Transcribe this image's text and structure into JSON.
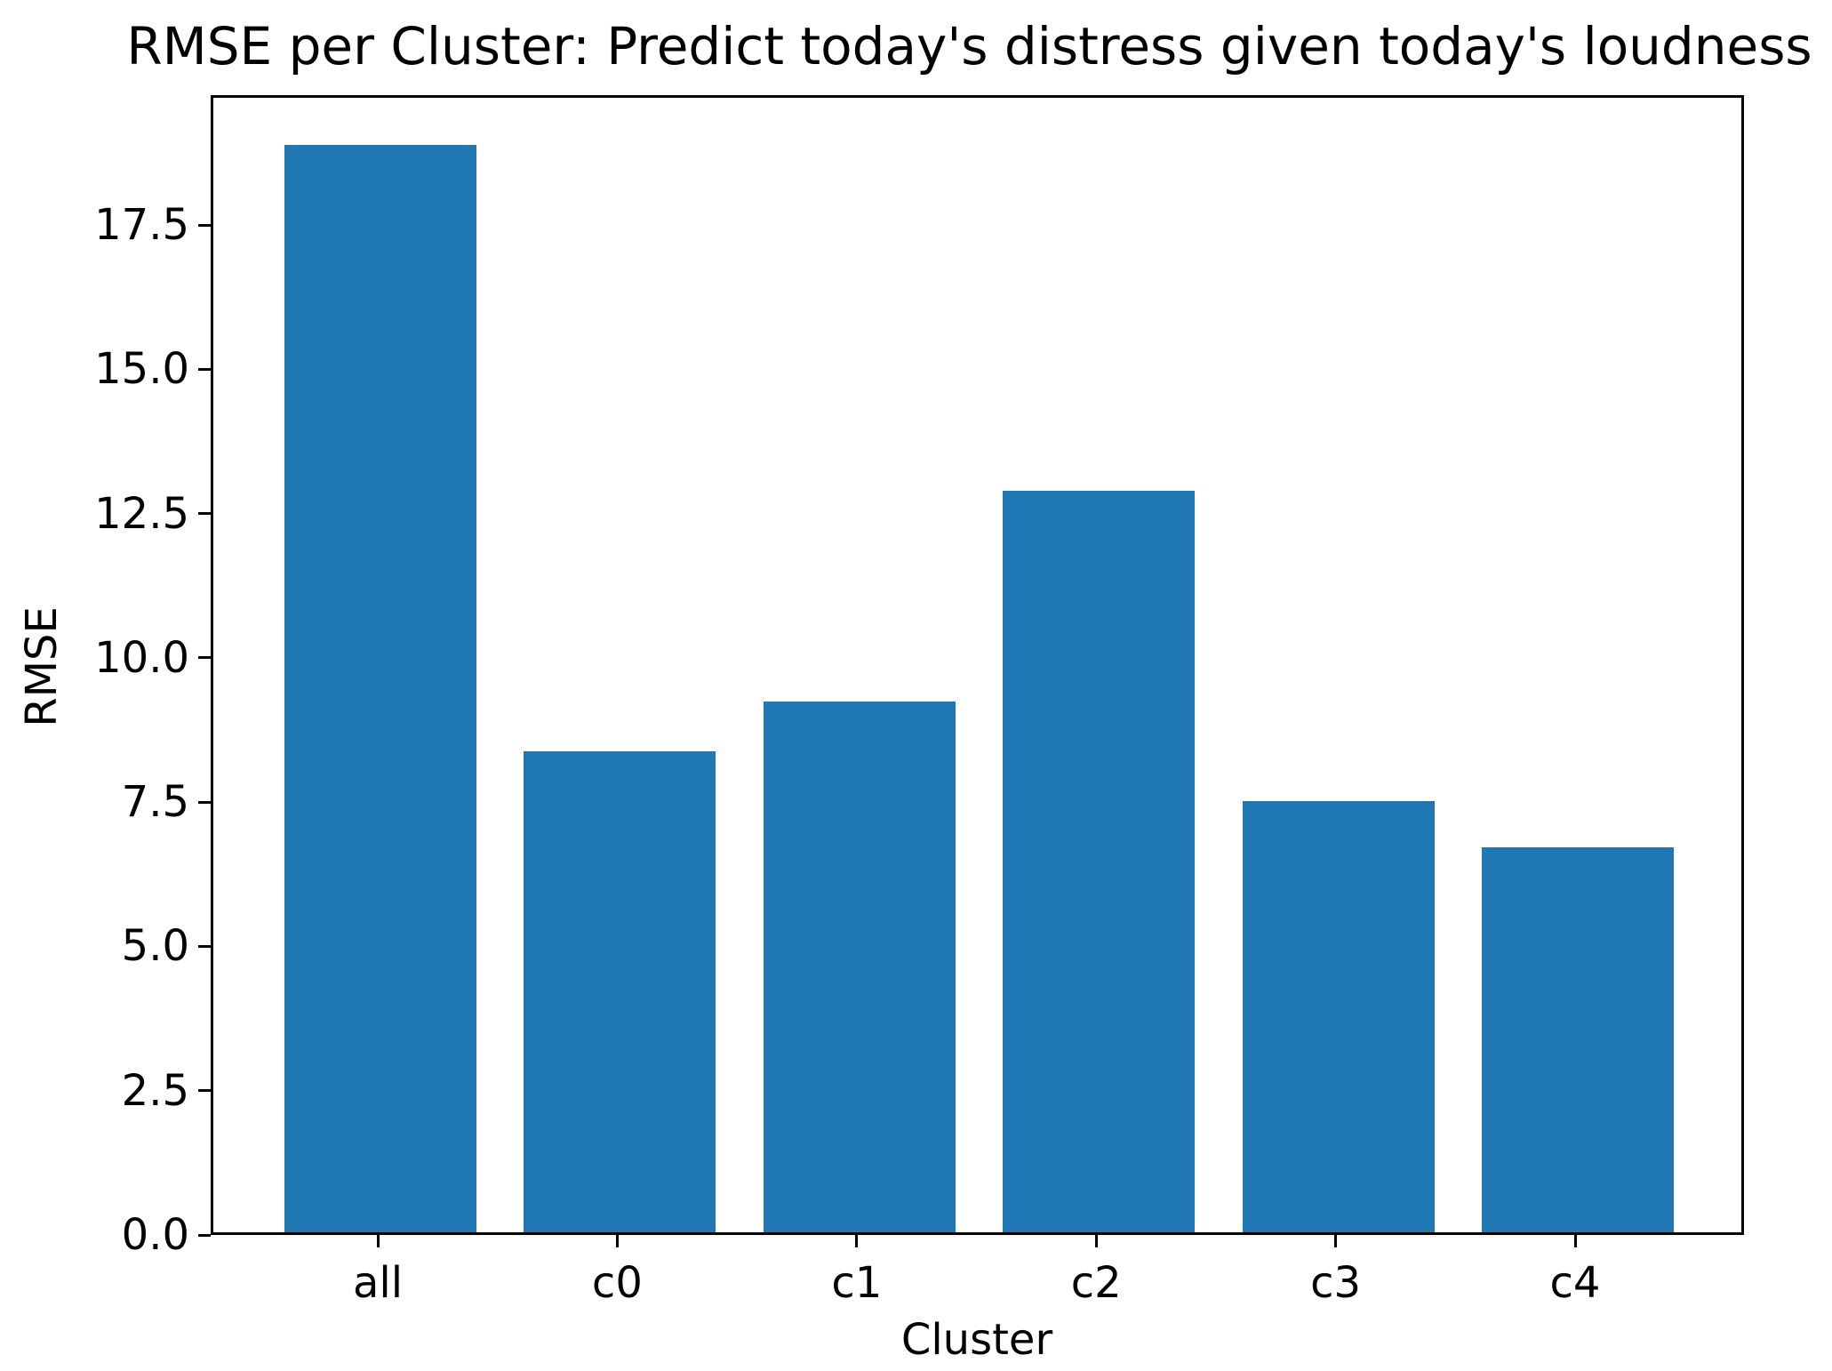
{
  "chart_data": {
    "type": "bar",
    "title": "RMSE per Cluster: Predict today's distress given today's loudness",
    "xlabel": "Cluster",
    "ylabel": "RMSE",
    "categories": [
      "all",
      "c0",
      "c1",
      "c2",
      "c3",
      "c4"
    ],
    "values": [
      18.84,
      8.33,
      9.2,
      12.85,
      7.47,
      6.67
    ],
    "series": [
      {
        "name": "RMSE",
        "values": [
          18.84,
          8.33,
          9.2,
          12.85,
          7.47,
          6.67
        ]
      }
    ],
    "y_ticks": [
      0.0,
      2.5,
      5.0,
      7.5,
      10.0,
      12.5,
      15.0,
      17.5
    ],
    "y_tick_labels": [
      "0.0",
      "2.5",
      "5.0",
      "7.5",
      "10.0",
      "12.5",
      "15.0",
      "17.5"
    ],
    "ylim": [
      0,
      19.75
    ],
    "grid": false,
    "legend": null,
    "bar_color": "#1f77b4",
    "axis_color": "#000000",
    "text_color": "#000000"
  }
}
